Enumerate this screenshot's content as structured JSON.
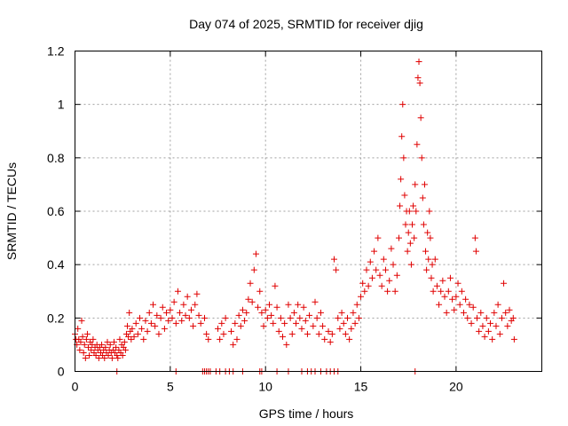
{
  "chart_data": {
    "type": "scatter",
    "title": "Day 074 of 2025, SRMTID for receiver djig",
    "xlabel": "GPS time / hours",
    "ylabel": "SRMTID / TECUs",
    "xlim": [
      0,
      24.5
    ],
    "ylim": [
      0,
      1.2
    ],
    "x_ticks": [
      0,
      5,
      10,
      15,
      20
    ],
    "y_ticks": [
      0,
      0.2,
      0.4,
      0.6,
      0.8,
      1,
      1.2
    ],
    "x_tick_labels": [
      "0",
      "5",
      "10",
      "15",
      "20"
    ],
    "y_tick_labels": [
      "0",
      "0.2",
      "0.4",
      "0.6",
      "0.8",
      "1",
      "1.2"
    ],
    "grid": true,
    "marker": "plus",
    "color": "#e00000",
    "series": [
      {
        "name": "SRMTID",
        "points": [
          [
            0.0,
            0.14
          ],
          [
            0.05,
            0.12
          ],
          [
            0.1,
            0.1
          ],
          [
            0.15,
            0.16
          ],
          [
            0.2,
            0.12
          ],
          [
            0.25,
            0.08
          ],
          [
            0.3,
            0.11
          ],
          [
            0.35,
            0.19
          ],
          [
            0.4,
            0.13
          ],
          [
            0.45,
            0.07
          ],
          [
            0.5,
            0.1
          ],
          [
            0.55,
            0.05
          ],
          [
            0.6,
            0.12
          ],
          [
            0.65,
            0.14
          ],
          [
            0.7,
            0.09
          ],
          [
            0.75,
            0.06
          ],
          [
            0.8,
            0.11
          ],
          [
            0.85,
            0.08
          ],
          [
            0.9,
            0.1
          ],
          [
            0.95,
            0.12
          ],
          [
            1.0,
            0.07
          ],
          [
            1.05,
            0.09
          ],
          [
            1.1,
            0.06
          ],
          [
            1.15,
            0.1
          ],
          [
            1.2,
            0.08
          ],
          [
            1.25,
            0.05
          ],
          [
            1.3,
            0.09
          ],
          [
            1.35,
            0.07
          ],
          [
            1.4,
            0.1
          ],
          [
            1.45,
            0.06
          ],
          [
            1.5,
            0.08
          ],
          [
            1.55,
            0.05
          ],
          [
            1.6,
            0.09
          ],
          [
            1.65,
            0.07
          ],
          [
            1.7,
            0.11
          ],
          [
            1.75,
            0.06
          ],
          [
            1.8,
            0.08
          ],
          [
            1.85,
            0.1
          ],
          [
            1.9,
            0.07
          ],
          [
            1.95,
            0.05
          ],
          [
            2.0,
            0.08
          ],
          [
            2.05,
            0.11
          ],
          [
            2.1,
            0.07
          ],
          [
            2.15,
            0.09
          ],
          [
            2.2,
            0.06
          ],
          [
            2.25,
            0.05
          ],
          [
            2.3,
            0.08
          ],
          [
            2.35,
            0.12
          ],
          [
            2.4,
            0.07
          ],
          [
            2.45,
            0.1
          ],
          [
            2.5,
            0.06
          ],
          [
            2.55,
            0.09
          ],
          [
            2.6,
            0.11
          ],
          [
            2.65,
            0.08
          ],
          [
            2.7,
            0.14
          ],
          [
            2.75,
            0.17
          ],
          [
            2.8,
            0.13
          ],
          [
            2.85,
            0.22
          ],
          [
            2.9,
            0.15
          ],
          [
            2.95,
            0.12
          ],
          [
            3.0,
            0.16
          ],
          [
            3.1,
            0.13
          ],
          [
            3.2,
            0.18
          ],
          [
            3.3,
            0.14
          ],
          [
            3.4,
            0.2
          ],
          [
            3.5,
            0.16
          ],
          [
            3.6,
            0.12
          ],
          [
            3.7,
            0.19
          ],
          [
            3.8,
            0.15
          ],
          [
            3.9,
            0.22
          ],
          [
            4.0,
            0.18
          ],
          [
            4.1,
            0.25
          ],
          [
            4.2,
            0.17
          ],
          [
            4.3,
            0.21
          ],
          [
            4.4,
            0.14
          ],
          [
            4.5,
            0.2
          ],
          [
            4.6,
            0.24
          ],
          [
            4.7,
            0.16
          ],
          [
            4.8,
            0.22
          ],
          [
            4.9,
            0.19
          ],
          [
            5.0,
            0.23
          ],
          [
            5.1,
            0.2
          ],
          [
            5.2,
            0.26
          ],
          [
            5.3,
            0.18
          ],
          [
            5.4,
            0.3
          ],
          [
            5.5,
            0.22
          ],
          [
            5.6,
            0.19
          ],
          [
            5.7,
            0.25
          ],
          [
            5.8,
            0.21
          ],
          [
            5.9,
            0.28
          ],
          [
            6.0,
            0.2
          ],
          [
            6.1,
            0.23
          ],
          [
            6.2,
            0.17
          ],
          [
            6.3,
            0.25
          ],
          [
            6.4,
            0.29
          ],
          [
            6.5,
            0.21
          ],
          [
            6.6,
            0.18
          ],
          [
            6.8,
            0.2
          ],
          [
            6.9,
            0.14
          ],
          [
            7.0,
            0.12
          ],
          [
            7.5,
            0.16
          ],
          [
            7.6,
            0.12
          ],
          [
            7.7,
            0.18
          ],
          [
            7.8,
            0.14
          ],
          [
            7.9,
            0.2
          ],
          [
            8.2,
            0.15
          ],
          [
            8.3,
            0.1
          ],
          [
            8.4,
            0.18
          ],
          [
            8.5,
            0.12
          ],
          [
            8.6,
            0.21
          ],
          [
            8.7,
            0.17
          ],
          [
            8.8,
            0.23
          ],
          [
            8.9,
            0.19
          ],
          [
            9.0,
            0.22
          ],
          [
            9.1,
            0.27
          ],
          [
            9.2,
            0.33
          ],
          [
            9.3,
            0.26
          ],
          [
            9.4,
            0.38
          ],
          [
            9.5,
            0.44
          ],
          [
            9.6,
            0.24
          ],
          [
            9.7,
            0.3
          ],
          [
            9.8,
            0.22
          ],
          [
            9.9,
            0.17
          ],
          [
            10.0,
            0.23
          ],
          [
            10.1,
            0.2
          ],
          [
            10.2,
            0.25
          ],
          [
            10.3,
            0.21
          ],
          [
            10.4,
            0.18
          ],
          [
            10.5,
            0.32
          ],
          [
            10.6,
            0.24
          ],
          [
            10.7,
            0.15
          ],
          [
            10.8,
            0.2
          ],
          [
            10.9,
            0.13
          ],
          [
            11.0,
            0.18
          ],
          [
            11.1,
            0.1
          ],
          [
            11.2,
            0.25
          ],
          [
            11.3,
            0.2
          ],
          [
            11.4,
            0.14
          ],
          [
            11.5,
            0.22
          ],
          [
            11.6,
            0.18
          ],
          [
            11.7,
            0.25
          ],
          [
            11.8,
            0.2
          ],
          [
            11.9,
            0.16
          ],
          [
            12.0,
            0.24
          ],
          [
            12.1,
            0.19
          ],
          [
            12.2,
            0.14
          ],
          [
            12.3,
            0.21
          ],
          [
            12.5,
            0.17
          ],
          [
            12.6,
            0.26
          ],
          [
            12.7,
            0.2
          ],
          [
            12.8,
            0.14
          ],
          [
            12.9,
            0.22
          ],
          [
            13.0,
            0.17
          ],
          [
            13.1,
            0.12
          ],
          [
            13.3,
            0.15
          ],
          [
            13.4,
            0.11
          ],
          [
            13.5,
            0.14
          ],
          [
            13.6,
            0.42
          ],
          [
            13.7,
            0.38
          ],
          [
            13.8,
            0.2
          ],
          [
            13.9,
            0.16
          ],
          [
            14.0,
            0.22
          ],
          [
            14.1,
            0.18
          ],
          [
            14.2,
            0.14
          ],
          [
            14.3,
            0.2
          ],
          [
            14.4,
            0.12
          ],
          [
            14.5,
            0.16
          ],
          [
            14.6,
            0.22
          ],
          [
            14.7,
            0.18
          ],
          [
            14.8,
            0.25
          ],
          [
            14.9,
            0.2
          ],
          [
            15.0,
            0.28
          ],
          [
            15.1,
            0.33
          ],
          [
            15.2,
            0.3
          ],
          [
            15.3,
            0.38
          ],
          [
            15.4,
            0.32
          ],
          [
            15.5,
            0.41
          ],
          [
            15.6,
            0.35
          ],
          [
            15.7,
            0.45
          ],
          [
            15.8,
            0.38
          ],
          [
            15.9,
            0.5
          ],
          [
            16.0,
            0.36
          ],
          [
            16.1,
            0.32
          ],
          [
            16.2,
            0.42
          ],
          [
            16.3,
            0.38
          ],
          [
            16.4,
            0.3
          ],
          [
            16.5,
            0.34
          ],
          [
            16.6,
            0.46
          ],
          [
            16.7,
            0.4
          ],
          [
            16.8,
            0.3
          ],
          [
            16.9,
            0.36
          ],
          [
            17.0,
            0.5
          ],
          [
            17.05,
            0.62
          ],
          [
            17.1,
            0.72
          ],
          [
            17.15,
            0.88
          ],
          [
            17.2,
            1.0
          ],
          [
            17.25,
            0.8
          ],
          [
            17.3,
            0.66
          ],
          [
            17.35,
            0.55
          ],
          [
            17.4,
            0.6
          ],
          [
            17.45,
            0.45
          ],
          [
            17.5,
            0.52
          ],
          [
            17.55,
            0.6
          ],
          [
            17.6,
            0.48
          ],
          [
            17.65,
            0.4
          ],
          [
            17.7,
            0.55
          ],
          [
            17.75,
            0.62
          ],
          [
            17.8,
            0.5
          ],
          [
            17.85,
            0.7
          ],
          [
            17.9,
            0.6
          ],
          [
            17.95,
            0.85
          ],
          [
            18.0,
            1.1
          ],
          [
            18.05,
            1.16
          ],
          [
            18.1,
            1.08
          ],
          [
            18.15,
            0.95
          ],
          [
            18.2,
            0.8
          ],
          [
            18.25,
            0.65
          ],
          [
            18.3,
            0.55
          ],
          [
            18.35,
            0.7
          ],
          [
            18.4,
            0.45
          ],
          [
            18.45,
            0.38
          ],
          [
            18.5,
            0.52
          ],
          [
            18.55,
            0.42
          ],
          [
            18.6,
            0.6
          ],
          [
            18.65,
            0.5
          ],
          [
            18.7,
            0.35
          ],
          [
            18.75,
            0.4
          ],
          [
            18.8,
            0.3
          ],
          [
            18.9,
            0.42
          ],
          [
            19.0,
            0.32
          ],
          [
            19.1,
            0.25
          ],
          [
            19.2,
            0.3
          ],
          [
            19.3,
            0.34
          ],
          [
            19.4,
            0.28
          ],
          [
            19.5,
            0.22
          ],
          [
            19.6,
            0.3
          ],
          [
            19.7,
            0.35
          ],
          [
            19.8,
            0.27
          ],
          [
            19.9,
            0.23
          ],
          [
            20.0,
            0.28
          ],
          [
            20.1,
            0.33
          ],
          [
            20.2,
            0.25
          ],
          [
            20.3,
            0.3
          ],
          [
            20.4,
            0.22
          ],
          [
            20.5,
            0.27
          ],
          [
            20.6,
            0.2
          ],
          [
            20.7,
            0.25
          ],
          [
            20.8,
            0.18
          ],
          [
            20.9,
            0.24
          ],
          [
            21.0,
            0.5
          ],
          [
            21.05,
            0.45
          ],
          [
            21.1,
            0.2
          ],
          [
            21.2,
            0.15
          ],
          [
            21.3,
            0.22
          ],
          [
            21.4,
            0.17
          ],
          [
            21.5,
            0.13
          ],
          [
            21.6,
            0.2
          ],
          [
            21.7,
            0.15
          ],
          [
            21.8,
            0.18
          ],
          [
            21.9,
            0.12
          ],
          [
            22.0,
            0.22
          ],
          [
            22.1,
            0.17
          ],
          [
            22.2,
            0.25
          ],
          [
            22.3,
            0.14
          ],
          [
            22.4,
            0.2
          ],
          [
            22.5,
            0.33
          ],
          [
            22.6,
            0.22
          ],
          [
            22.7,
            0.17
          ],
          [
            22.8,
            0.23
          ],
          [
            22.9,
            0.19
          ],
          [
            23.0,
            0.2
          ],
          [
            23.05,
            0.12
          ],
          [
            2.2,
            0.0
          ],
          [
            5.3,
            0.0
          ],
          [
            6.7,
            0.0
          ],
          [
            6.8,
            0.0
          ],
          [
            6.9,
            0.0
          ],
          [
            7.0,
            0.0
          ],
          [
            7.1,
            0.0
          ],
          [
            7.4,
            0.0
          ],
          [
            7.6,
            0.0
          ],
          [
            7.9,
            0.0
          ],
          [
            8.1,
            0.0
          ],
          [
            8.3,
            0.0
          ],
          [
            8.8,
            0.0
          ],
          [
            9.7,
            0.0
          ],
          [
            9.8,
            0.0
          ],
          [
            10.6,
            0.0
          ],
          [
            11.2,
            0.0
          ],
          [
            11.9,
            0.0
          ],
          [
            12.2,
            0.0
          ],
          [
            12.4,
            0.0
          ],
          [
            12.6,
            0.0
          ],
          [
            12.9,
            0.0
          ],
          [
            13.2,
            0.0
          ],
          [
            13.4,
            0.0
          ],
          [
            13.6,
            0.0
          ],
          [
            13.8,
            0.0
          ],
          [
            17.85,
            0.0
          ]
        ]
      }
    ]
  }
}
